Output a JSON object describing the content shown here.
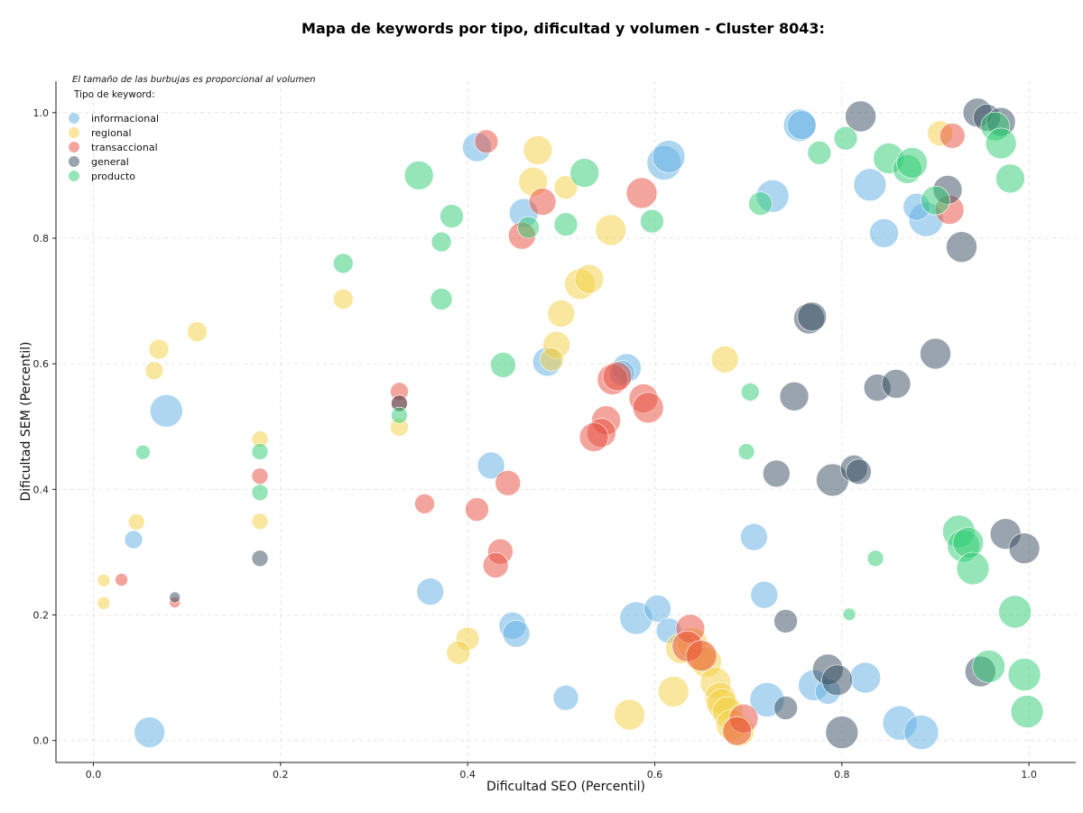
{
  "chart_data": {
    "type": "scatter",
    "title": "Mapa de keywords por tipo, dificultad y volumen - Cluster 8043:",
    "xlabel": "Dificultad SEO (Percentil)",
    "ylabel": "Dificultad SEM (Percentil)",
    "xlim": [
      -0.04,
      1.05
    ],
    "ylim": [
      -0.035,
      1.05
    ],
    "xticks": [
      "0.0",
      "0.2",
      "0.4",
      "0.6",
      "0.8",
      "1.0"
    ],
    "yticks": [
      "0.0",
      "0.2",
      "0.4",
      "0.6",
      "0.8",
      "1.0"
    ],
    "grid": true,
    "size_note": "El tamaño de las burbujas es proporcional al volumen",
    "legend": {
      "title": "Tipo de keyword:",
      "placement": "top-left"
    },
    "series": [
      {
        "name": "informacional",
        "color": "#5dade2",
        "points": [
          [
            0.41,
            0.945,
            16
          ],
          [
            0.46,
            0.84,
            16
          ],
          [
            0.61,
            0.92,
            19
          ],
          [
            0.615,
            0.93,
            18
          ],
          [
            0.755,
            0.98,
            18
          ],
          [
            0.757,
            0.98,
            16
          ],
          [
            0.726,
            0.867,
            18
          ],
          [
            0.83,
            0.885,
            18
          ],
          [
            0.845,
            0.808,
            16
          ],
          [
            0.89,
            0.83,
            19
          ],
          [
            0.88,
            0.85,
            15
          ],
          [
            0.078,
            0.525,
            18
          ],
          [
            0.043,
            0.32,
            10
          ],
          [
            0.06,
            0.013,
            17
          ],
          [
            0.36,
            0.237,
            15
          ],
          [
            0.425,
            0.438,
            15
          ],
          [
            0.485,
            0.603,
            16
          ],
          [
            0.57,
            0.593,
            16
          ],
          [
            0.565,
            0.585,
            14
          ],
          [
            0.448,
            0.183,
            15
          ],
          [
            0.452,
            0.17,
            15
          ],
          [
            0.505,
            0.068,
            14
          ],
          [
            0.58,
            0.195,
            18
          ],
          [
            0.603,
            0.21,
            15
          ],
          [
            0.615,
            0.175,
            14
          ],
          [
            0.706,
            0.324,
            15
          ],
          [
            0.717,
            0.232,
            15
          ],
          [
            0.72,
            0.065,
            19
          ],
          [
            0.77,
            0.088,
            17
          ],
          [
            0.785,
            0.078,
            14
          ],
          [
            0.825,
            0.1,
            17
          ],
          [
            0.862,
            0.028,
            19
          ],
          [
            0.885,
            0.013,
            19
          ]
        ]
      },
      {
        "name": "regional",
        "color": "#f4d03f",
        "points": [
          [
            0.475,
            0.94,
            16
          ],
          [
            0.47,
            0.89,
            16
          ],
          [
            0.505,
            0.881,
            13
          ],
          [
            0.553,
            0.813,
            17
          ],
          [
            0.52,
            0.727,
            17
          ],
          [
            0.53,
            0.735,
            16
          ],
          [
            0.5,
            0.68,
            15
          ],
          [
            0.495,
            0.63,
            15
          ],
          [
            0.49,
            0.607,
            13
          ],
          [
            0.675,
            0.607,
            15
          ],
          [
            0.905,
            0.967,
            14
          ],
          [
            0.111,
            0.651,
            11
          ],
          [
            0.07,
            0.623,
            11
          ],
          [
            0.065,
            0.589,
            10
          ],
          [
            0.267,
            0.703,
            11
          ],
          [
            0.178,
            0.48,
            9
          ],
          [
            0.178,
            0.349,
            9
          ],
          [
            0.046,
            0.348,
            9
          ],
          [
            0.011,
            0.255,
            7
          ],
          [
            0.011,
            0.219,
            7
          ],
          [
            0.327,
            0.499,
            10
          ],
          [
            0.4,
            0.162,
            13
          ],
          [
            0.39,
            0.14,
            13
          ],
          [
            0.573,
            0.041,
            17
          ],
          [
            0.62,
            0.078,
            17
          ],
          [
            0.628,
            0.147,
            17
          ],
          [
            0.64,
            0.155,
            17
          ],
          [
            0.648,
            0.135,
            17
          ],
          [
            0.655,
            0.125,
            17
          ],
          [
            0.665,
            0.092,
            17
          ],
          [
            0.67,
            0.068,
            17
          ],
          [
            0.672,
            0.058,
            17
          ],
          [
            0.678,
            0.045,
            17
          ],
          [
            0.682,
            0.025,
            17
          ],
          [
            0.69,
            0.015,
            17
          ]
        ]
      },
      {
        "name": "transaccional",
        "color": "#e74c3c",
        "points": [
          [
            0.42,
            0.954,
            13
          ],
          [
            0.48,
            0.858,
            15
          ],
          [
            0.458,
            0.804,
            15
          ],
          [
            0.586,
            0.872,
            17
          ],
          [
            0.918,
            0.963,
            14
          ],
          [
            0.915,
            0.845,
            16
          ],
          [
            0.327,
            0.556,
            10
          ],
          [
            0.327,
            0.537,
            9
          ],
          [
            0.178,
            0.421,
            9
          ],
          [
            0.03,
            0.256,
            7
          ],
          [
            0.087,
            0.22,
            6
          ],
          [
            0.354,
            0.377,
            11
          ],
          [
            0.41,
            0.368,
            13
          ],
          [
            0.443,
            0.41,
            14
          ],
          [
            0.435,
            0.301,
            14
          ],
          [
            0.43,
            0.279,
            14
          ],
          [
            0.555,
            0.575,
            17
          ],
          [
            0.56,
            0.58,
            16
          ],
          [
            0.588,
            0.545,
            16
          ],
          [
            0.593,
            0.53,
            17
          ],
          [
            0.548,
            0.51,
            16
          ],
          [
            0.543,
            0.49,
            16
          ],
          [
            0.535,
            0.483,
            16
          ],
          [
            0.638,
            0.178,
            16
          ],
          [
            0.635,
            0.15,
            17
          ],
          [
            0.65,
            0.135,
            17
          ],
          [
            0.695,
            0.035,
            16
          ],
          [
            0.688,
            0.015,
            16
          ]
        ]
      },
      {
        "name": "general",
        "color": "#34495e",
        "points": [
          [
            0.82,
            0.994,
            17
          ],
          [
            0.945,
            1.0,
            16
          ],
          [
            0.955,
            0.992,
            15
          ],
          [
            0.97,
            0.985,
            16
          ],
          [
            0.913,
            0.877,
            16
          ],
          [
            0.928,
            0.786,
            17
          ],
          [
            0.765,
            0.672,
            17
          ],
          [
            0.768,
            0.675,
            16
          ],
          [
            0.9,
            0.616,
            17
          ],
          [
            0.838,
            0.562,
            15
          ],
          [
            0.858,
            0.568,
            16
          ],
          [
            0.749,
            0.548,
            16
          ],
          [
            0.73,
            0.425,
            15
          ],
          [
            0.79,
            0.415,
            18
          ],
          [
            0.813,
            0.433,
            15
          ],
          [
            0.818,
            0.428,
            14
          ],
          [
            0.975,
            0.329,
            17
          ],
          [
            0.995,
            0.306,
            17
          ],
          [
            0.327,
            0.537,
            9
          ],
          [
            0.178,
            0.29,
            9
          ],
          [
            0.087,
            0.228,
            6
          ],
          [
            0.74,
            0.19,
            13
          ],
          [
            0.74,
            0.052,
            13
          ],
          [
            0.785,
            0.113,
            17
          ],
          [
            0.795,
            0.096,
            17
          ],
          [
            0.8,
            0.013,
            18
          ],
          [
            0.948,
            0.11,
            17
          ]
        ]
      },
      {
        "name": "producto",
        "color": "#2ecc71",
        "points": [
          [
            0.348,
            0.9,
            16
          ],
          [
            0.383,
            0.835,
            13
          ],
          [
            0.465,
            0.817,
            12
          ],
          [
            0.505,
            0.822,
            13
          ],
          [
            0.525,
            0.904,
            16
          ],
          [
            0.597,
            0.827,
            13
          ],
          [
            0.713,
            0.855,
            13
          ],
          [
            0.776,
            0.936,
            13
          ],
          [
            0.804,
            0.959,
            13
          ],
          [
            0.85,
            0.927,
            17
          ],
          [
            0.87,
            0.91,
            16
          ],
          [
            0.875,
            0.92,
            17
          ],
          [
            0.9,
            0.86,
            16
          ],
          [
            0.964,
            0.978,
            16
          ],
          [
            0.97,
            0.951,
            17
          ],
          [
            0.98,
            0.895,
            16
          ],
          [
            0.267,
            0.76,
            11
          ],
          [
            0.372,
            0.794,
            11
          ],
          [
            0.372,
            0.703,
            12
          ],
          [
            0.438,
            0.598,
            14
          ],
          [
            0.327,
            0.518,
            9
          ],
          [
            0.178,
            0.46,
            9
          ],
          [
            0.178,
            0.395,
            9
          ],
          [
            0.053,
            0.459,
            8
          ],
          [
            0.702,
            0.555,
            10
          ],
          [
            0.698,
            0.46,
            9
          ],
          [
            0.836,
            0.29,
            9
          ],
          [
            0.808,
            0.201,
            7
          ],
          [
            0.925,
            0.333,
            18
          ],
          [
            0.93,
            0.31,
            18
          ],
          [
            0.935,
            0.315,
            17
          ],
          [
            0.94,
            0.274,
            18
          ],
          [
            0.985,
            0.205,
            18
          ],
          [
            0.957,
            0.118,
            18
          ],
          [
            0.995,
            0.105,
            18
          ],
          [
            0.998,
            0.046,
            18
          ]
        ]
      }
    ]
  }
}
